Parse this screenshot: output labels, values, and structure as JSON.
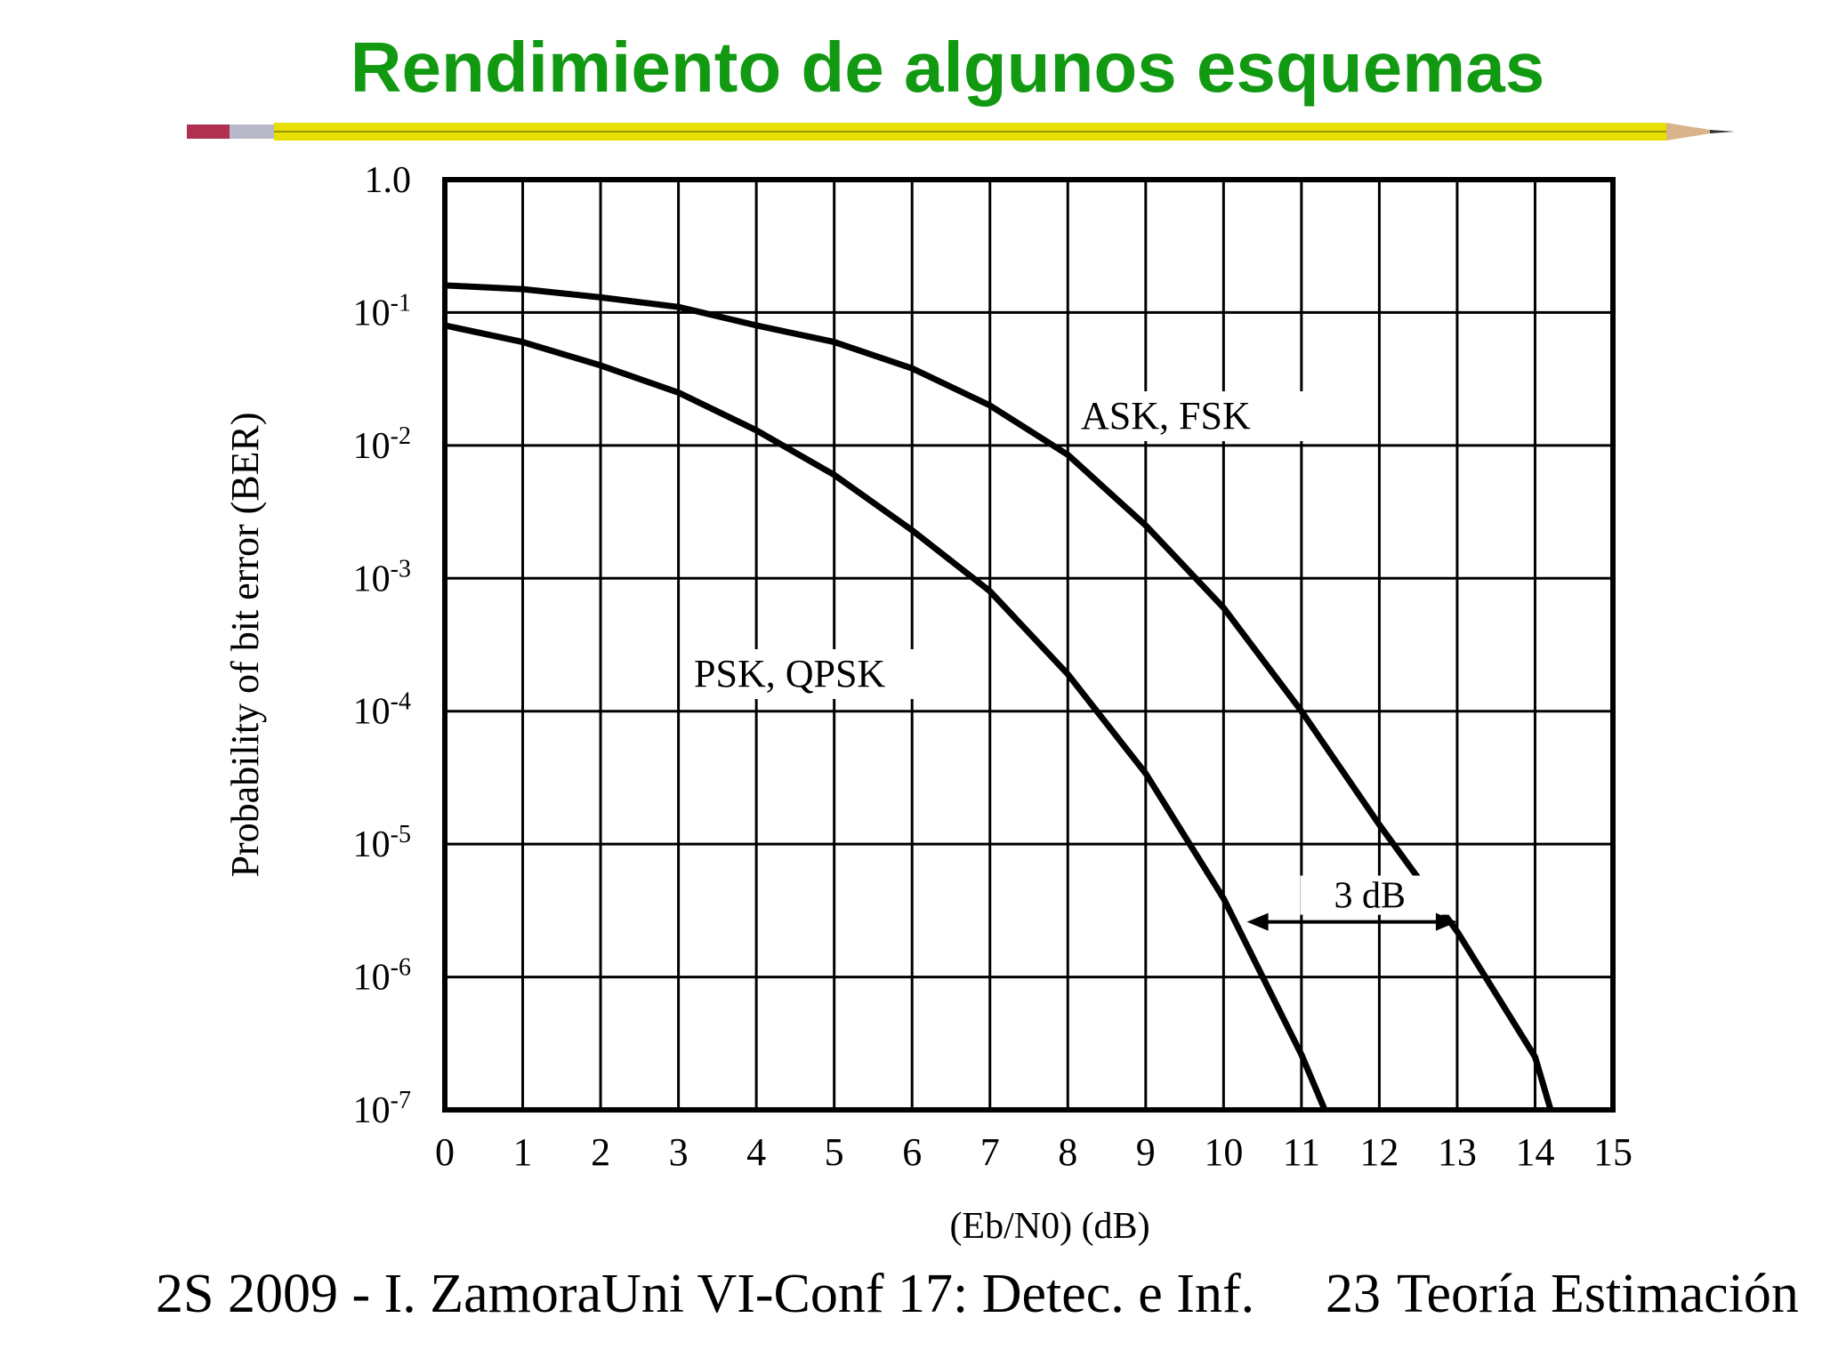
{
  "slide": {
    "title": "Rendimiento de algunos esquemas",
    "footer_left": "2S 2009 - I. ZamoraUni VI-Conf 17: Detec. e Inf.",
    "footer_page": "23",
    "footer_right": "Teoría Estimación"
  },
  "colors": {
    "title": "#119911",
    "line": "#000000",
    "pencil_body": "#e8e000",
    "pencil_eraser": "#b03050"
  },
  "chart_data": {
    "type": "line",
    "title": "",
    "xlabel": "(Eb/N0) (dB)",
    "ylabel": "Probability of bit error (BER)",
    "xlim": [
      0,
      15
    ],
    "ylim": [
      1e-07,
      1
    ],
    "yscale": "log",
    "grid": true,
    "x_ticks": [
      "0",
      "1",
      "2",
      "3",
      "4",
      "5",
      "6",
      "7",
      "8",
      "9",
      "10",
      "11",
      "12",
      "13",
      "14",
      "15"
    ],
    "y_ticks": [
      {
        "base": "1.0",
        "exp": ""
      },
      {
        "base": "10",
        "exp": "-1"
      },
      {
        "base": "10",
        "exp": "-2"
      },
      {
        "base": "10",
        "exp": "-3"
      },
      {
        "base": "10",
        "exp": "-4"
      },
      {
        "base": "10",
        "exp": "-5"
      },
      {
        "base": "10",
        "exp": "-6"
      },
      {
        "base": "10",
        "exp": "-7"
      }
    ],
    "series": [
      {
        "name": "PSK, QPSK",
        "x": [
          0,
          1,
          2,
          3,
          4,
          5,
          6,
          7,
          8,
          9,
          10,
          11,
          11.3
        ],
        "y": [
          0.08,
          0.06,
          0.04,
          0.025,
          0.013,
          0.006,
          0.0023,
          0.0008,
          0.00019,
          3.4e-05,
          3.9e-06,
          2.6e-07,
          1e-07
        ]
      },
      {
        "name": "ASK, FSK",
        "x": [
          0,
          1,
          2,
          3,
          4,
          5,
          6,
          7,
          8,
          9,
          10,
          11,
          12,
          13,
          14,
          14.2
        ],
        "y": [
          0.16,
          0.15,
          0.13,
          0.11,
          0.08,
          0.06,
          0.038,
          0.02,
          0.0085,
          0.0025,
          0.0006,
          0.0001,
          1.4e-05,
          2.2e-06,
          2.5e-07,
          1e-07
        ]
      }
    ],
    "annotations": [
      {
        "text": "3 dB",
        "x_from": 10.3,
        "x_to": 13.0,
        "y": 2.6e-06
      }
    ]
  }
}
